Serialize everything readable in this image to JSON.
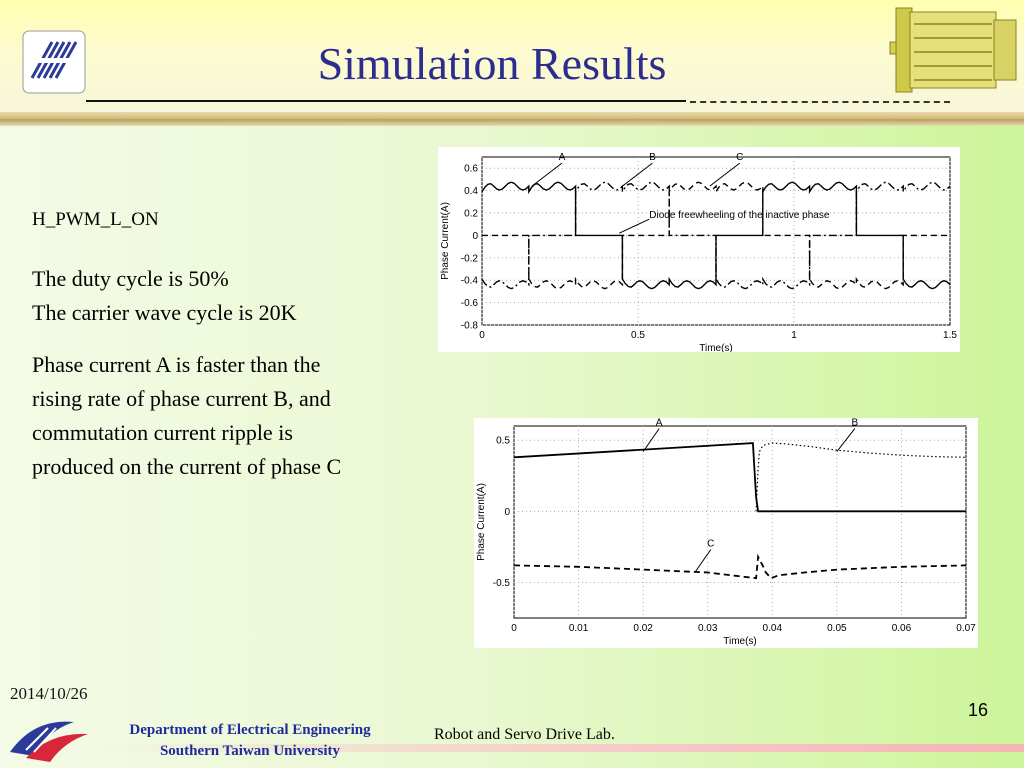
{
  "slide": {
    "title": "Simulation Results",
    "mode": "H_PWM_L_ON",
    "duty_line": "The duty cycle is 50%",
    "carrier_line": "The carrier wave cycle is 20K",
    "explanation": [
      "Phase current A is faster than the",
      "rising rate of phase current B, and",
      "commutation current ripple is",
      "produced on the current of phase C"
    ],
    "date": "2014/10/26",
    "page_number": "16",
    "department": [
      "Department of Electrical Engineering",
      "Southern Taiwan University"
    ],
    "lab": "Robot and Servo Drive Lab."
  },
  "colors": {
    "title": "#2d2d8f",
    "department": "#1f2a9e"
  },
  "chart_data": [
    {
      "type": "line",
      "xlabel": "Time(s)",
      "ylabel": "Phase Current(A)",
      "xlim": [
        0,
        1.5
      ],
      "ylim": [
        -0.8,
        0.7
      ],
      "x_ticks": [
        0,
        0.5,
        1,
        1.5
      ],
      "y_ticks": [
        0.6,
        0.4,
        0.2,
        0,
        -0.2,
        -0.4,
        -0.6,
        -0.8
      ],
      "grid": true,
      "commutations": [
        0.15,
        0.3,
        0.45,
        0.6,
        0.75,
        0.9,
        1.05,
        1.2,
        1.35,
        1.5
      ],
      "plateau_high": 0.44,
      "plateau_low": -0.44,
      "series": [
        {
          "name": "A",
          "style": "solid",
          "sequence": [
            1,
            1,
            0,
            -1,
            -1,
            0
          ]
        },
        {
          "name": "B",
          "style": "dashdot",
          "sequence": [
            -1,
            0,
            1,
            1,
            0,
            -1
          ]
        },
        {
          "name": "C",
          "style": "dashed",
          "sequence": [
            0,
            -1,
            -1,
            0,
            1,
            1
          ]
        }
      ],
      "annotations": [
        {
          "text": "A",
          "x": 0.16,
          "y": 0.44
        },
        {
          "text": "B",
          "x": 0.45,
          "y": 0.44
        },
        {
          "text": "C",
          "x": 0.73,
          "y": 0.44
        },
        {
          "text": "Diode freewheeling of the inactive phase",
          "x": 0.44,
          "y": 0.02
        }
      ]
    },
    {
      "type": "line",
      "xlabel": "Time(s)",
      "ylabel": "Phase Current(A)",
      "xlim": [
        0,
        0.07
      ],
      "ylim": [
        -0.75,
        0.6
      ],
      "x_ticks": [
        0,
        0.01,
        0.02,
        0.03,
        0.04,
        0.05,
        0.06,
        0.07
      ],
      "y_ticks": [
        0.5,
        0,
        -0.5
      ],
      "grid": true,
      "series": [
        {
          "name": "A",
          "style": "solid",
          "x": [
            0,
            0.037,
            0.0375,
            0.0378,
            0.07
          ],
          "y": [
            0.38,
            0.48,
            0.1,
            0,
            0
          ]
        },
        {
          "name": "B",
          "style": "dotted",
          "x": [
            0.0375,
            0.0378,
            0.038,
            0.0385,
            0.039,
            0.04,
            0.042,
            0.046,
            0.05,
            0.055,
            0.06,
            0.065,
            0.07
          ],
          "y": [
            0,
            0.3,
            0.42,
            0.46,
            0.47,
            0.48,
            0.475,
            0.455,
            0.43,
            0.41,
            0.395,
            0.385,
            0.38
          ]
        },
        {
          "name": "C",
          "style": "dashed",
          "x": [
            0,
            0.01,
            0.02,
            0.03,
            0.0375,
            0.0378,
            0.0385,
            0.039,
            0.0398,
            0.041,
            0.045,
            0.05,
            0.055,
            0.06,
            0.065,
            0.07
          ],
          "y": [
            -0.38,
            -0.39,
            -0.41,
            -0.43,
            -0.47,
            -0.32,
            -0.38,
            -0.43,
            -0.47,
            -0.45,
            -0.43,
            -0.41,
            -0.4,
            -0.39,
            -0.385,
            -0.38
          ]
        }
      ],
      "annotations": [
        {
          "text": "A",
          "x": 0.02,
          "y": 0.42
        },
        {
          "text": "B",
          "x": 0.05,
          "y": 0.42
        },
        {
          "text": "C",
          "x": 0.028,
          "y": -0.43
        }
      ]
    }
  ]
}
